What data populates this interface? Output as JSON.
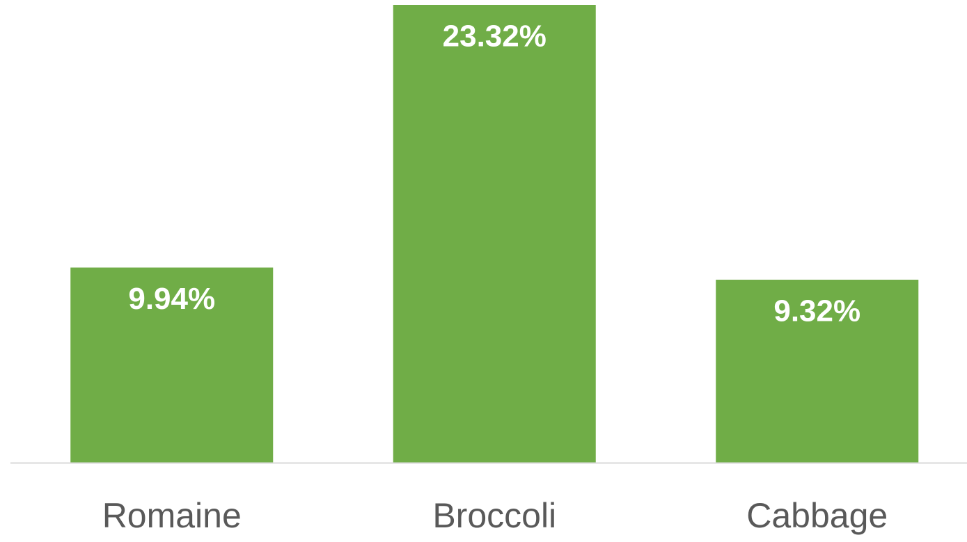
{
  "chart_data": {
    "type": "bar",
    "categories": [
      "Romaine",
      "Broccoli",
      "Cabbage"
    ],
    "values": [
      9.94,
      23.32,
      9.32
    ],
    "value_labels": [
      "9.94%",
      "23.32%",
      "9.32%"
    ],
    "color": "#70ad47"
  }
}
